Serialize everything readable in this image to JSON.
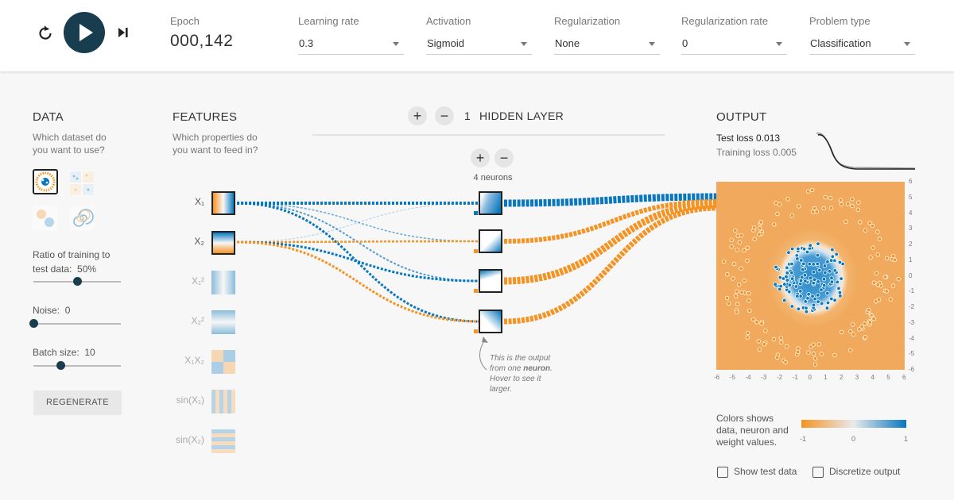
{
  "controls": {
    "reset_icon": "reset-icon",
    "play_icon": "play-icon",
    "step_icon": "step-forward-icon"
  },
  "epoch": {
    "label": "Epoch",
    "value": "000,142"
  },
  "settings": [
    {
      "label": "Learning rate",
      "value": "0.3"
    },
    {
      "label": "Activation",
      "value": "Sigmoid"
    },
    {
      "label": "Regularization",
      "value": "None"
    },
    {
      "label": "Regularization rate",
      "value": "0"
    },
    {
      "label": "Problem type",
      "value": "Classification"
    }
  ],
  "data_panel": {
    "title": "DATA",
    "subtitle_1": "Which dataset do",
    "subtitle_2": "you want to use?",
    "datasets": [
      "circle",
      "xor",
      "gaussian",
      "spiral"
    ],
    "selected_dataset": "circle",
    "ratio_label_1": "Ratio of training to",
    "ratio_label_2": "test data:",
    "ratio_value": "50%",
    "ratio": 0.5,
    "noise_label": "Noise:",
    "noise_value": "0",
    "noise": 0,
    "batch_label": "Batch size:",
    "batch_value": "10",
    "batch_fraction": 0.33,
    "regenerate": "REGENERATE"
  },
  "features_panel": {
    "title": "FEATURES",
    "subtitle_1": "Which properties do",
    "subtitle_2": "you want to feed in?",
    "features": [
      {
        "label": "X₁",
        "active": true
      },
      {
        "label": "X₂",
        "active": true
      },
      {
        "label": "X₁²",
        "active": false
      },
      {
        "label": "X₂²",
        "active": false
      },
      {
        "label": "X₁X₂",
        "active": false
      },
      {
        "label": "sin(X₁)",
        "active": false
      },
      {
        "label": "sin(X₂)",
        "active": false
      }
    ]
  },
  "hidden": {
    "count": "1",
    "title": "HIDDEN LAYER",
    "plus": "+",
    "minus": "−",
    "neurons_label": "4 neurons",
    "annotation_1": "This is the output",
    "annotation_2": "from one",
    "annotation_bold": "neuron",
    "annotation_3": ". Hover to see it",
    "annotation_4": "larger."
  },
  "output": {
    "title": "OUTPUT",
    "test_loss_label": "Test loss",
    "test_loss": "0.013",
    "training_loss_label": "Training loss",
    "training_loss": "0.005",
    "axis_ticks": [
      "-6",
      "-5",
      "-4",
      "-3",
      "-2",
      "-1",
      "0",
      "1",
      "2",
      "3",
      "4",
      "5",
      "6"
    ],
    "legend_1": "Colors shows",
    "legend_2": "data, neuron and",
    "legend_3": "weight values.",
    "scale_min": "-1",
    "scale_mid": "0",
    "scale_max": "1",
    "show_test_data": "Show test data",
    "discretize_output": "Discretize output"
  },
  "colors": {
    "blue": "#0877bd",
    "orange": "#f59322",
    "dark": "#183d4e",
    "bg": "#f7f7f7"
  }
}
